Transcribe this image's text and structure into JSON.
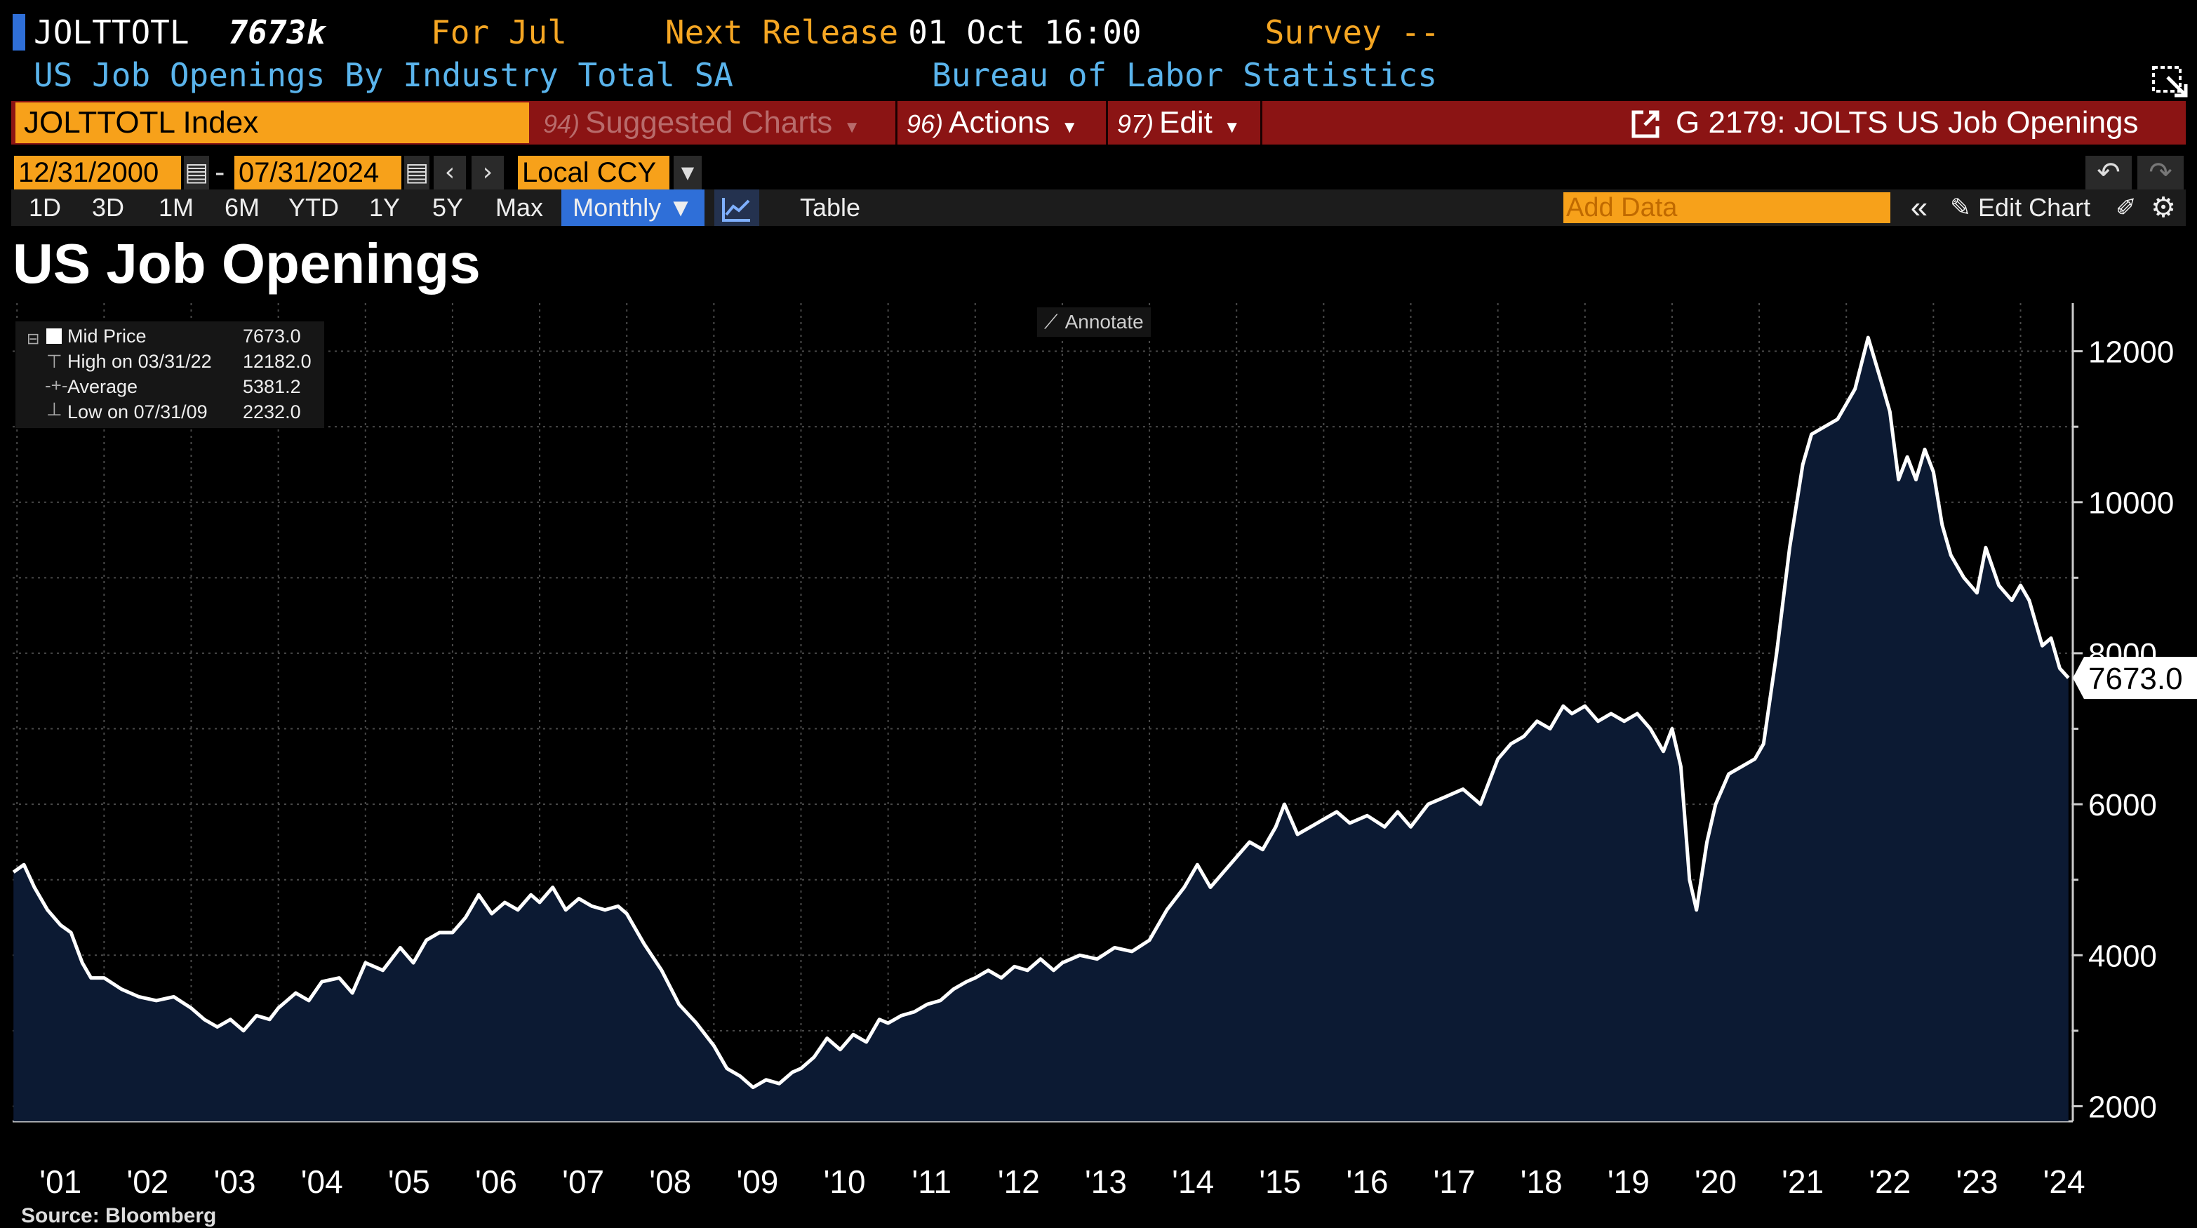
{
  "header": {
    "ticker": "JOLTTOTL",
    "last_value": "7673k",
    "for_label": "For Jul",
    "next_release_label": "Next Release",
    "next_release_value": "01 Oct 16:00",
    "survey_label": "Survey --",
    "description": "US Job Openings By Industry Total SA",
    "source_agency": "Bureau of Labor Statistics"
  },
  "toolbar": {
    "security": "JOLTTOTL Index",
    "suggested_num": "94)",
    "suggested_label": "Suggested Charts",
    "actions_num": "96)",
    "actions_label": "Actions",
    "edit_num": "97)",
    "edit_label": "Edit",
    "chart_id": "G 2179: JOLTS US Job Openings"
  },
  "date_range": {
    "start": "12/31/2000",
    "sep": "-",
    "end": "07/31/2024",
    "currency": "Local CCY"
  },
  "periods": [
    "1D",
    "3D",
    "1M",
    "6M",
    "YTD",
    "1Y",
    "5Y",
    "Max"
  ],
  "frequency": "Monthly ▼",
  "table_label": "Table",
  "add_data_placeholder": "Add Data",
  "edit_chart_label": "Edit Chart",
  "annotate_label": "Annotate",
  "legend": {
    "rows": [
      {
        "label": "Mid Price",
        "value": "7673.0"
      },
      {
        "label": "High on 03/31/22",
        "value": "12182.0"
      },
      {
        "label": "Average",
        "value": "5381.2"
      },
      {
        "label": "Low on 07/31/09",
        "value": "2232.0"
      }
    ]
  },
  "source": "Source: Bloomberg",
  "colors": {
    "area": "#0c1a33",
    "line": "#ffffff",
    "accent": "#f7a11a",
    "toolbar_red": "#8b1414",
    "cyan": "#5ab4ec"
  },
  "chart_data": {
    "type": "area",
    "title": "US Job Openings",
    "series_name": "Mid Price",
    "last_label": "7673.0",
    "ylim": [
      1800,
      12600
    ],
    "yticks": [
      2000,
      4000,
      6000,
      8000,
      10000,
      12000
    ],
    "xlim": [
      2000.95,
      2024.6
    ],
    "xticks": [
      {
        "x": 2001.5,
        "label": "'01"
      },
      {
        "x": 2002.5,
        "label": "'02"
      },
      {
        "x": 2003.5,
        "label": "'03"
      },
      {
        "x": 2004.5,
        "label": "'04"
      },
      {
        "x": 2005.5,
        "label": "'05"
      },
      {
        "x": 2006.5,
        "label": "'06"
      },
      {
        "x": 2007.5,
        "label": "'07"
      },
      {
        "x": 2008.5,
        "label": "'08"
      },
      {
        "x": 2009.5,
        "label": "'09"
      },
      {
        "x": 2010.5,
        "label": "'10"
      },
      {
        "x": 2011.5,
        "label": "'11"
      },
      {
        "x": 2012.5,
        "label": "'12"
      },
      {
        "x": 2013.5,
        "label": "'13"
      },
      {
        "x": 2014.5,
        "label": "'14"
      },
      {
        "x": 2015.5,
        "label": "'15"
      },
      {
        "x": 2016.5,
        "label": "'16"
      },
      {
        "x": 2017.5,
        "label": "'17"
      },
      {
        "x": 2018.5,
        "label": "'18"
      },
      {
        "x": 2019.5,
        "label": "'19"
      },
      {
        "x": 2020.5,
        "label": "'20"
      },
      {
        "x": 2021.5,
        "label": "'21"
      },
      {
        "x": 2022.5,
        "label": "'22"
      },
      {
        "x": 2023.5,
        "label": "'23"
      },
      {
        "x": 2024.5,
        "label": "'24"
      }
    ],
    "points": [
      [
        2000.96,
        5100
      ],
      [
        2001.08,
        5200
      ],
      [
        2001.2,
        4900
      ],
      [
        2001.35,
        4600
      ],
      [
        2001.5,
        4400
      ],
      [
        2001.62,
        4300
      ],
      [
        2001.75,
        3900
      ],
      [
        2001.85,
        3700
      ],
      [
        2002.0,
        3700
      ],
      [
        2002.2,
        3550
      ],
      [
        2002.4,
        3450
      ],
      [
        2002.6,
        3400
      ],
      [
        2002.8,
        3450
      ],
      [
        2003.0,
        3300
      ],
      [
        2003.15,
        3150
      ],
      [
        2003.3,
        3050
      ],
      [
        2003.45,
        3150
      ],
      [
        2003.6,
        3000
      ],
      [
        2003.75,
        3200
      ],
      [
        2003.9,
        3150
      ],
      [
        2004.0,
        3300
      ],
      [
        2004.2,
        3500
      ],
      [
        2004.35,
        3400
      ],
      [
        2004.5,
        3650
      ],
      [
        2004.7,
        3700
      ],
      [
        2004.85,
        3500
      ],
      [
        2005.0,
        3900
      ],
      [
        2005.2,
        3800
      ],
      [
        2005.4,
        4100
      ],
      [
        2005.55,
        3900
      ],
      [
        2005.7,
        4200
      ],
      [
        2005.85,
        4300
      ],
      [
        2006.0,
        4300
      ],
      [
        2006.15,
        4500
      ],
      [
        2006.3,
        4800
      ],
      [
        2006.45,
        4550
      ],
      [
        2006.6,
        4700
      ],
      [
        2006.75,
        4600
      ],
      [
        2006.9,
        4800
      ],
      [
        2007.0,
        4700
      ],
      [
        2007.15,
        4900
      ],
      [
        2007.3,
        4600
      ],
      [
        2007.45,
        4750
      ],
      [
        2007.6,
        4650
      ],
      [
        2007.75,
        4600
      ],
      [
        2007.9,
        4650
      ],
      [
        2008.0,
        4550
      ],
      [
        2008.2,
        4150
      ],
      [
        2008.4,
        3800
      ],
      [
        2008.6,
        3350
      ],
      [
        2008.8,
        3100
      ],
      [
        2009.0,
        2800
      ],
      [
        2009.15,
        2500
      ],
      [
        2009.3,
        2400
      ],
      [
        2009.45,
        2250
      ],
      [
        2009.6,
        2350
      ],
      [
        2009.75,
        2300
      ],
      [
        2009.9,
        2450
      ],
      [
        2010.0,
        2500
      ],
      [
        2010.15,
        2650
      ],
      [
        2010.3,
        2900
      ],
      [
        2010.45,
        2750
      ],
      [
        2010.6,
        2950
      ],
      [
        2010.75,
        2850
      ],
      [
        2010.9,
        3150
      ],
      [
        2011.0,
        3100
      ],
      [
        2011.15,
        3200
      ],
      [
        2011.3,
        3250
      ],
      [
        2011.45,
        3350
      ],
      [
        2011.6,
        3400
      ],
      [
        2011.75,
        3550
      ],
      [
        2011.9,
        3650
      ],
      [
        2012.0,
        3700
      ],
      [
        2012.15,
        3800
      ],
      [
        2012.3,
        3700
      ],
      [
        2012.45,
        3850
      ],
      [
        2012.6,
        3800
      ],
      [
        2012.75,
        3950
      ],
      [
        2012.9,
        3800
      ],
      [
        2013.0,
        3900
      ],
      [
        2013.2,
        4000
      ],
      [
        2013.4,
        3950
      ],
      [
        2013.6,
        4100
      ],
      [
        2013.8,
        4050
      ],
      [
        2014.0,
        4200
      ],
      [
        2014.2,
        4600
      ],
      [
        2014.4,
        4900
      ],
      [
        2014.55,
        5200
      ],
      [
        2014.7,
        4900
      ],
      [
        2014.85,
        5100
      ],
      [
        2015.0,
        5300
      ],
      [
        2015.15,
        5500
      ],
      [
        2015.3,
        5400
      ],
      [
        2015.45,
        5700
      ],
      [
        2015.55,
        6000
      ],
      [
        2015.7,
        5600
      ],
      [
        2015.85,
        5700
      ],
      [
        2016.0,
        5800
      ],
      [
        2016.15,
        5900
      ],
      [
        2016.3,
        5750
      ],
      [
        2016.5,
        5850
      ],
      [
        2016.7,
        5700
      ],
      [
        2016.85,
        5900
      ],
      [
        2017.0,
        5700
      ],
      [
        2017.2,
        6000
      ],
      [
        2017.4,
        6100
      ],
      [
        2017.6,
        6200
      ],
      [
        2017.8,
        6000
      ],
      [
        2018.0,
        6600
      ],
      [
        2018.15,
        6800
      ],
      [
        2018.3,
        6900
      ],
      [
        2018.45,
        7100
      ],
      [
        2018.6,
        7000
      ],
      [
        2018.75,
        7300
      ],
      [
        2018.85,
        7200
      ],
      [
        2019.0,
        7300
      ],
      [
        2019.15,
        7100
      ],
      [
        2019.3,
        7200
      ],
      [
        2019.45,
        7100
      ],
      [
        2019.6,
        7200
      ],
      [
        2019.75,
        7000
      ],
      [
        2019.9,
        6700
      ],
      [
        2020.0,
        7000
      ],
      [
        2020.1,
        6500
      ],
      [
        2020.2,
        5000
      ],
      [
        2020.28,
        4600
      ],
      [
        2020.4,
        5500
      ],
      [
        2020.5,
        6000
      ],
      [
        2020.65,
        6400
      ],
      [
        2020.8,
        6500
      ],
      [
        2020.95,
        6600
      ],
      [
        2021.05,
        6800
      ],
      [
        2021.2,
        8000
      ],
      [
        2021.35,
        9400
      ],
      [
        2021.5,
        10500
      ],
      [
        2021.6,
        10900
      ],
      [
        2021.75,
        11000
      ],
      [
        2021.9,
        11100
      ],
      [
        2022.0,
        11300
      ],
      [
        2022.1,
        11500
      ],
      [
        2022.25,
        12182
      ],
      [
        2022.4,
        11600
      ],
      [
        2022.5,
        11200
      ],
      [
        2022.6,
        10300
      ],
      [
        2022.7,
        10600
      ],
      [
        2022.8,
        10300
      ],
      [
        2022.9,
        10700
      ],
      [
        2023.0,
        10400
      ],
      [
        2023.1,
        9700
      ],
      [
        2023.2,
        9300
      ],
      [
        2023.35,
        9000
      ],
      [
        2023.5,
        8800
      ],
      [
        2023.6,
        9400
      ],
      [
        2023.75,
        8900
      ],
      [
        2023.9,
        8700
      ],
      [
        2024.0,
        8900
      ],
      [
        2024.1,
        8700
      ],
      [
        2024.25,
        8100
      ],
      [
        2024.35,
        8200
      ],
      [
        2024.45,
        7800
      ],
      [
        2024.55,
        7673
      ]
    ]
  }
}
